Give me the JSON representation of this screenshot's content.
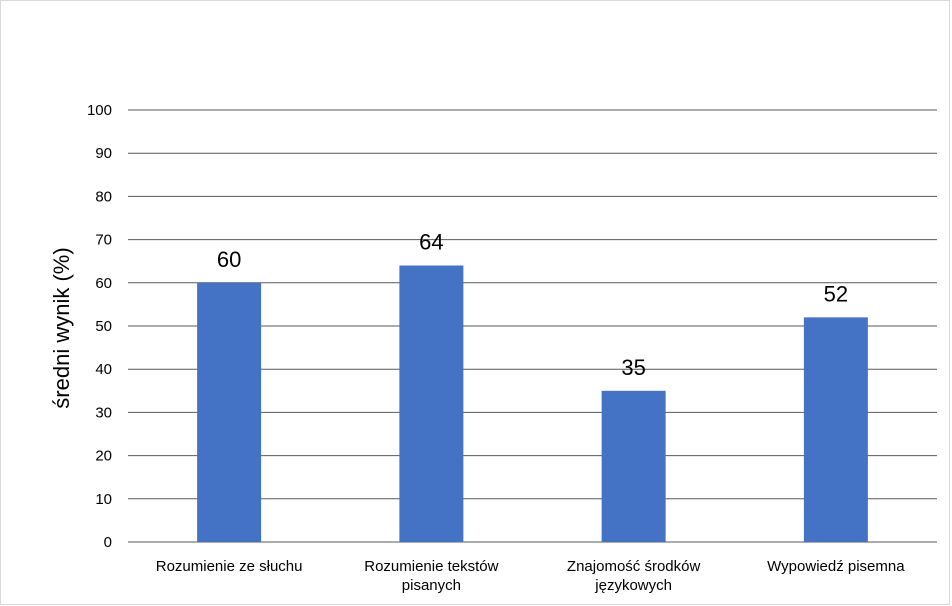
{
  "chart_data": {
    "type": "bar",
    "title": "",
    "xlabel": "",
    "ylabel": "średni wynik (%)",
    "categories": [
      [
        "Rozumienie ze słuchu"
      ],
      [
        "Rozumienie tekstów",
        "pisanych"
      ],
      [
        "Znajomość środków",
        "językowych"
      ],
      [
        "Wypowiedź pisemna"
      ]
    ],
    "values": [
      60,
      64,
      35,
      52
    ],
    "ylim": [
      0,
      100
    ],
    "yticks": [
      0,
      10,
      20,
      30,
      40,
      50,
      60,
      70,
      80,
      90,
      100
    ],
    "grid": true,
    "legend": "none",
    "colors": {
      "bar": "#4472c4",
      "grid": "#595959",
      "text": "#000000"
    }
  }
}
